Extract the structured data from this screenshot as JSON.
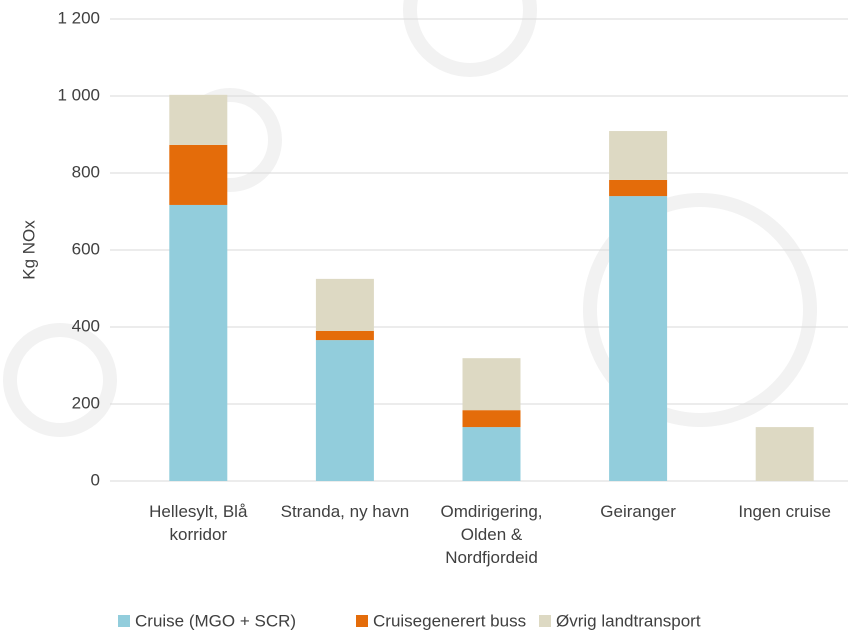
{
  "chart_data": {
    "type": "bar",
    "stacked": true,
    "y_label": "Kg NOx",
    "categories": [
      "Hellesylt, Blå korridor",
      "Stranda, ny havn",
      "Omdirigering, Olden & Nordfjordeid",
      "Geiranger",
      "Ingen cruise"
    ],
    "series": [
      {
        "name": "Cruise (MGO + SCR)",
        "color": "#92cddc",
        "values": [
          717,
          366,
          140,
          740,
          0
        ]
      },
      {
        "name": "Cruisegenerert buss",
        "color": "#e46c0a",
        "values": [
          156,
          24,
          44,
          42,
          0
        ]
      },
      {
        "name": "Øvrig landtransport",
        "color": "#ddd9c3",
        "values": [
          130,
          135,
          135,
          127,
          140
        ]
      }
    ],
    "ylim": [
      0,
      1200
    ],
    "yticks": [
      0,
      200,
      400,
      600,
      800,
      {
        "value": 1000,
        "label": "1 000"
      },
      {
        "value": 1200,
        "label": "1 200"
      }
    ],
    "grid": true,
    "legend": "bottom"
  }
}
